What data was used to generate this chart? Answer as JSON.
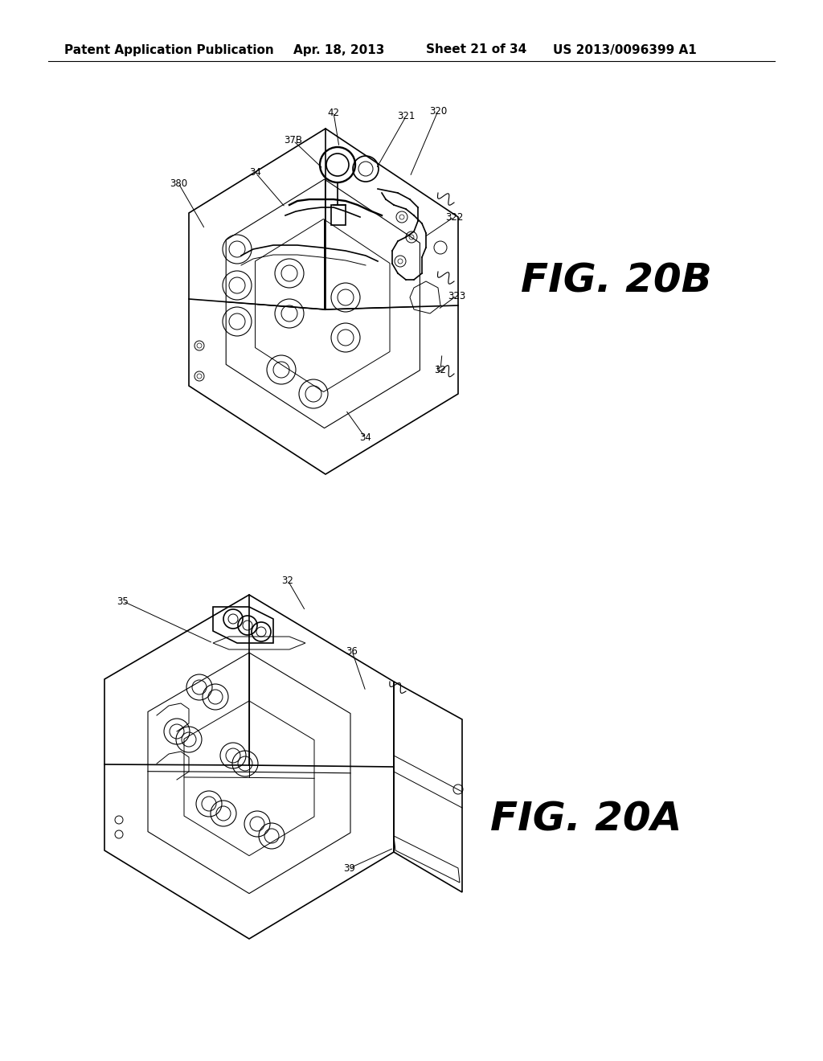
{
  "page_background": "#ffffff",
  "header_text": "Patent Application Publication",
  "header_date": "Apr. 18, 2013",
  "header_sheet": "Sheet 21 of 34",
  "header_patent": "US 2013/0096399 A1",
  "line_color": "#000000",
  "text_color": "#000000",
  "label_fontsize": 8.5,
  "figlabel_fontsize": 36,
  "header_fontsize": 11
}
